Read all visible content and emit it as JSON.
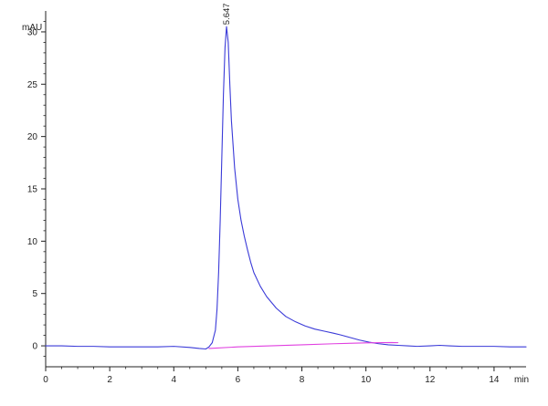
{
  "chart_data": {
    "type": "line",
    "title": "",
    "xlabel": "min",
    "ylabel": "mAU",
    "xlim": [
      0,
      15
    ],
    "ylim": [
      -2,
      32
    ],
    "grid": false,
    "x_ticks": [
      0,
      2,
      4,
      6,
      8,
      10,
      12,
      14
    ],
    "x_tick_labels": [
      "0",
      "2",
      "4",
      "6",
      "8",
      "10",
      "12",
      "14"
    ],
    "y_ticks": [
      0,
      5,
      10,
      15,
      20,
      25,
      30
    ],
    "y_tick_labels": [
      "0",
      "5",
      "10",
      "15",
      "20",
      "25",
      "30"
    ],
    "peak_annotation": {
      "label": "5.647",
      "x": 5.647,
      "y": 30.5
    },
    "series": [
      {
        "color": "#3a3ad8",
        "x": [
          0,
          0.5,
          1,
          1.5,
          2,
          2.5,
          3,
          3.5,
          4,
          4.5,
          4.8,
          5.0,
          5.1,
          5.2,
          5.3,
          5.35,
          5.4,
          5.45,
          5.5,
          5.55,
          5.6,
          5.647,
          5.7,
          5.75,
          5.8,
          5.9,
          6.0,
          6.1,
          6.2,
          6.3,
          6.4,
          6.5,
          6.7,
          6.9,
          7.2,
          7.5,
          7.8,
          8.1,
          8.4,
          8.7,
          9.0,
          9.2,
          9.5,
          9.8,
          10.1,
          10.4,
          10.7,
          11.0,
          11.3,
          11.6,
          12.0,
          12.3,
          12.6,
          13.0,
          13.5,
          14.0,
          14.5,
          15.0
        ],
        "y": [
          0.0,
          0.0,
          -0.05,
          -0.05,
          -0.1,
          -0.1,
          -0.1,
          -0.1,
          -0.05,
          -0.15,
          -0.25,
          -0.3,
          -0.1,
          0.3,
          1.5,
          3.5,
          7.0,
          12.0,
          18.0,
          24.0,
          28.5,
          30.5,
          29.0,
          25.0,
          21.5,
          17.0,
          14.0,
          12.0,
          10.5,
          9.2,
          8.0,
          7.0,
          5.7,
          4.7,
          3.6,
          2.8,
          2.3,
          1.9,
          1.6,
          1.4,
          1.2,
          1.05,
          0.8,
          0.55,
          0.35,
          0.2,
          0.1,
          0.05,
          0.0,
          -0.05,
          0.0,
          0.05,
          0.0,
          -0.05,
          -0.05,
          -0.05,
          -0.1,
          -0.1
        ]
      },
      {
        "color": "#e040e0",
        "x": [
          5.1,
          6.0,
          7.0,
          8.0,
          9.0,
          10.0,
          10.8,
          11.0
        ],
        "y": [
          -0.25,
          -0.1,
          0.0,
          0.1,
          0.2,
          0.28,
          0.32,
          0.3
        ]
      }
    ]
  }
}
